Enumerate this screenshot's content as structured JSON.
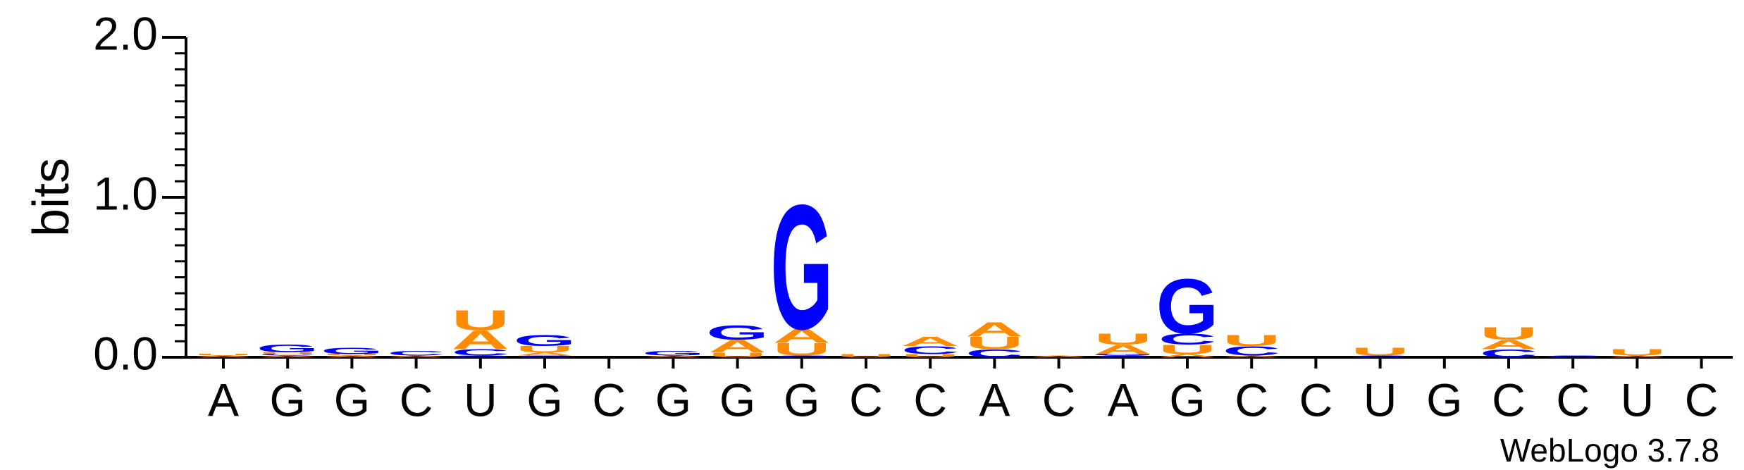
{
  "chart_data": {
    "type": "logo",
    "y_label": "bits",
    "footnote": "WebLogo 3.7.8",
    "categories": [
      "A",
      "G",
      "G",
      "C",
      "U",
      "G",
      "C",
      "G",
      "G",
      "G",
      "C",
      "C",
      "A",
      "C",
      "A",
      "G",
      "C",
      "C",
      "U",
      "G",
      "C",
      "C",
      "U",
      "C"
    ],
    "series": [
      {
        "name": "A",
        "color": "#ff8c00",
        "values": [
          0.01,
          0.01,
          0.01,
          0.01,
          0.12,
          0.02,
          0,
          0.01,
          0.08,
          0.09,
          0,
          0.06,
          0.09,
          0.01,
          0.06,
          0.02,
          0.01,
          0,
          0,
          0,
          0.06,
          0,
          0.01,
          0
        ]
      },
      {
        "name": "C",
        "color": "#0000ff",
        "values": [
          0,
          0.01,
          0,
          0.03,
          0.04,
          0.01,
          0,
          0,
          0,
          0.01,
          0,
          0.05,
          0.05,
          0,
          0.01,
          0.07,
          0.06,
          0,
          0.01,
          0,
          0.05,
          0.01,
          0,
          0
        ]
      },
      {
        "name": "G",
        "color": "#0000ff",
        "values": [
          0,
          0.05,
          0.04,
          0,
          0.01,
          0.07,
          0,
          0.03,
          0.09,
          0.8,
          0,
          0,
          0,
          0,
          0.01,
          0.35,
          0,
          0,
          0,
          0,
          0,
          0,
          0,
          0
        ]
      },
      {
        "name": "U",
        "color": "#ff8c00",
        "values": [
          0.01,
          0.01,
          0.01,
          0,
          0.13,
          0.04,
          0,
          0,
          0.03,
          0.08,
          0.02,
          0.02,
          0.08,
          0,
          0.07,
          0.06,
          0.07,
          0,
          0.05,
          0,
          0.08,
          0,
          0.04,
          0
        ]
      }
    ],
    "ylim": [
      0,
      2
    ],
    "yticks": [
      {
        "value": 0,
        "label": "0.0"
      },
      {
        "value": 1,
        "label": "1.0"
      },
      {
        "value": 2,
        "label": "2.0"
      }
    ]
  }
}
